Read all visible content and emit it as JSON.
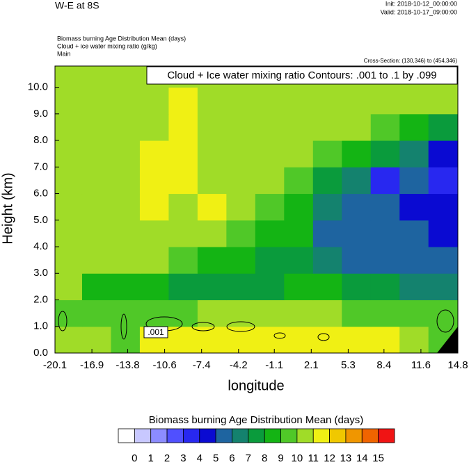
{
  "chart_data": {
    "type": "heatmap",
    "title": "W-E at 8S",
    "init": "Init: 2018-10-12_00:00:00",
    "valid": "Valid: 2018-10-17_09:00:00",
    "subtitles": [
      "Biomass burning Age Distribution Mean   (days)",
      "Cloud + ice water mixing ratio   (g/kg)",
      "Main"
    ],
    "cross_section": "Cross-Section: (130,346) to (454,346)",
    "contour_note": "Cloud + Ice water mixing ratio Contours: .001 to .1 by .099",
    "contour_label": ".001",
    "x_label": "longitude",
    "y_label": "Height (km)",
    "xlim": [
      -20.1,
      14.8
    ],
    "ylim": [
      0,
      10.8
    ],
    "xticks": [
      -20.1,
      -16.9,
      -13.8,
      -10.6,
      -7.4,
      -4.2,
      -1.1,
      2.1,
      5.3,
      8.4,
      11.6,
      14.8
    ],
    "yticks": [
      {
        "value": 0,
        "label": "0.0"
      },
      {
        "value": 1,
        "label": "1.0"
      },
      {
        "value": 2,
        "label": "2.0"
      },
      {
        "value": 3,
        "label": "3.0"
      },
      {
        "value": 4,
        "label": "4.0"
      },
      {
        "value": 5,
        "label": "5.0"
      },
      {
        "value": 6,
        "label": "6.0"
      },
      {
        "value": 7,
        "label": "7.0"
      },
      {
        "value": 8,
        "label": "8.0"
      },
      {
        "value": 9,
        "label": "9.0"
      },
      {
        "value": 10,
        "label": "10.0"
      }
    ],
    "x": [
      -19,
      -16.5,
      -14,
      -11.5,
      -9,
      -6.5,
      -4,
      -1.5,
      1,
      3.5,
      6,
      8.5,
      11,
      13.5
    ],
    "y": [
      0.5,
      1.5,
      2.5,
      3.5,
      4.5,
      5.5,
      6.5,
      7.5,
      8.5,
      9.5,
      10.5
    ],
    "z": [
      [
        10.5,
        10.5,
        9.5,
        11.5,
        11.5,
        11.5,
        11.5,
        11.5,
        11.5,
        11.5,
        11.5,
        11.5,
        10.5,
        9.5
      ],
      [
        9.5,
        9.5,
        9.5,
        9.5,
        9.5,
        10.5,
        10.5,
        10.5,
        10.5,
        10.5,
        9.5,
        9.5,
        9.5,
        9.5
      ],
      [
        10.5,
        8.5,
        8.5,
        8.5,
        7.5,
        7.5,
        7.5,
        7.5,
        8.5,
        8.5,
        7.5,
        7.5,
        6.5,
        6.5
      ],
      [
        10.5,
        10.5,
        10.5,
        10.5,
        9.5,
        8.5,
        8.5,
        7.5,
        7.5,
        6.5,
        5.5,
        5.5,
        5.5,
        5.5
      ],
      [
        10.5,
        10.5,
        10.5,
        10.5,
        10.5,
        10.5,
        9.5,
        8.5,
        8.5,
        5.5,
        5.5,
        5.5,
        5.5,
        4.5
      ],
      [
        10.5,
        10.5,
        10.5,
        11.5,
        10.5,
        11.5,
        10.5,
        9.5,
        8.5,
        6.5,
        5.5,
        5.5,
        4.5,
        4.5
      ],
      [
        10.5,
        10.5,
        10.5,
        11.5,
        11.5,
        10.5,
        10.5,
        10.5,
        9.5,
        7.5,
        6.5,
        3.5,
        5.5,
        3.5
      ],
      [
        10.5,
        10.5,
        10.5,
        11.5,
        11.5,
        10.5,
        10.5,
        10.5,
        10.5,
        9.5,
        8.5,
        7.5,
        6.5,
        4.5
      ],
      [
        10.5,
        10.5,
        10.5,
        10.5,
        11.5,
        10.5,
        10.5,
        10.5,
        10.5,
        10.5,
        10.5,
        9.5,
        8.5,
        7.5
      ],
      [
        10.5,
        10.5,
        10.5,
        10.5,
        11.5,
        10.5,
        10.5,
        10.5,
        10.5,
        10.5,
        10.5,
        10.5,
        10.5,
        10.5
      ],
      [
        10.5,
        10.5,
        10.5,
        10.5,
        10.5,
        10.5,
        10.5,
        10.5,
        10.5,
        10.5,
        10.5,
        10.5,
        10.5,
        10.5
      ]
    ],
    "colorbar_title": "Biomass burning Age Distribution Mean  (days)",
    "levels": [
      0,
      1,
      2,
      3,
      4,
      5,
      6,
      7,
      8,
      9,
      10,
      11,
      12,
      13,
      14,
      15
    ],
    "colors": [
      "#ffffff",
      "#c8c8ff",
      "#8c8cff",
      "#5050ff",
      "#2828f0",
      "#0a0ad2",
      "#1e64a0",
      "#14826e",
      "#0a9b3c",
      "#14b414",
      "#50c828",
      "#a0dc28",
      "#f0f014",
      "#f0c800",
      "#f09600",
      "#f06400",
      "#f01414"
    ]
  }
}
